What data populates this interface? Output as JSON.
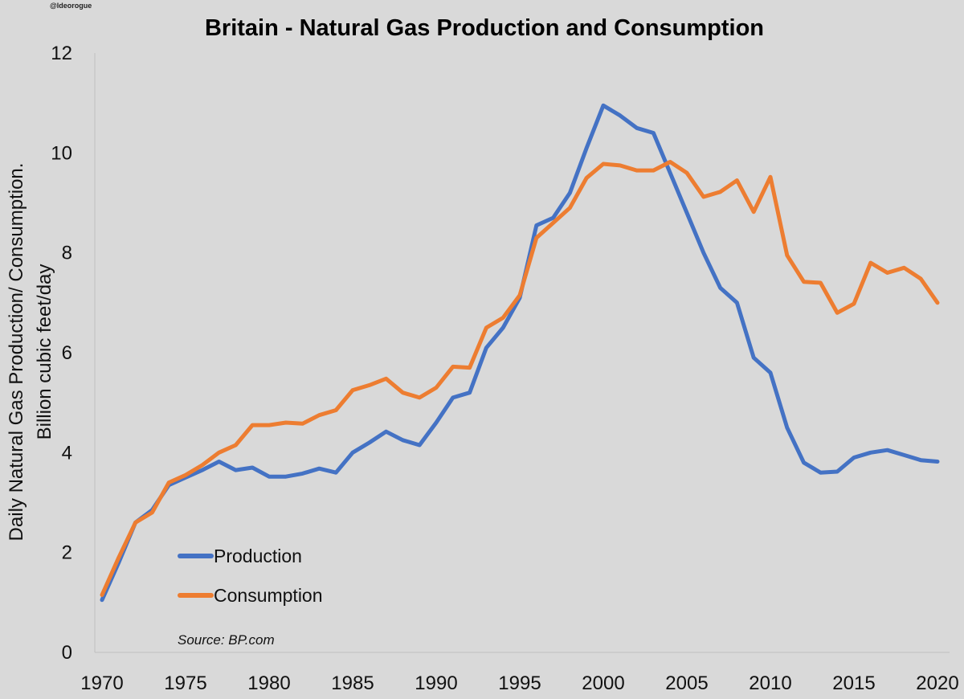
{
  "chart_data": {
    "type": "line",
    "title": "Britain - Natural Gas Production and Consumption",
    "handle": "@ldeorogue",
    "ylabel_line1": "Daily Natural Gas Production/ Consumption.",
    "ylabel_line2": "Billion cubic feet/day",
    "source": "Source: BP.com",
    "xlim": [
      1970,
      2020
    ],
    "ylim": [
      0,
      12
    ],
    "x_ticks": [
      1970,
      1975,
      1980,
      1985,
      1990,
      1995,
      2000,
      2005,
      2010,
      2015,
      2020
    ],
    "y_ticks": [
      0,
      2,
      4,
      6,
      8,
      10,
      12
    ],
    "grid": false,
    "legend_position": "bottom-left",
    "x": [
      1970,
      1971,
      1972,
      1973,
      1974,
      1975,
      1976,
      1977,
      1978,
      1979,
      1980,
      1981,
      1982,
      1983,
      1984,
      1985,
      1986,
      1987,
      1988,
      1989,
      1990,
      1991,
      1992,
      1993,
      1994,
      1995,
      1996,
      1997,
      1998,
      1999,
      2000,
      2001,
      2002,
      2003,
      2004,
      2005,
      2006,
      2007,
      2008,
      2009,
      2010,
      2011,
      2012,
      2013,
      2014,
      2015,
      2016,
      2017,
      2018,
      2019,
      2020
    ],
    "series": [
      {
        "name": "Production",
        "color": "#4472c4",
        "values": [
          1.05,
          1.8,
          2.6,
          2.85,
          3.35,
          3.5,
          3.65,
          3.82,
          3.65,
          3.7,
          3.52,
          3.52,
          3.58,
          3.68,
          3.6,
          4.0,
          4.2,
          4.42,
          4.25,
          4.15,
          4.6,
          5.1,
          5.2,
          6.1,
          6.5,
          7.1,
          8.55,
          8.7,
          9.2,
          10.1,
          10.95,
          10.75,
          10.5,
          10.4,
          9.6,
          8.8,
          8.0,
          7.3,
          7.0,
          5.9,
          5.6,
          4.5,
          3.8,
          3.6,
          3.62,
          3.9,
          4.0,
          4.05,
          3.95,
          3.85,
          3.82
        ]
      },
      {
        "name": "Consumption",
        "color": "#ed7d31",
        "values": [
          1.15,
          1.9,
          2.6,
          2.8,
          3.4,
          3.55,
          3.75,
          4.0,
          4.15,
          4.55,
          4.55,
          4.6,
          4.58,
          4.75,
          4.85,
          5.25,
          5.35,
          5.48,
          5.2,
          5.1,
          5.3,
          5.72,
          5.7,
          6.5,
          6.7,
          7.15,
          8.3,
          8.6,
          8.9,
          9.5,
          9.78,
          9.75,
          9.65,
          9.65,
          9.82,
          9.6,
          9.12,
          9.22,
          9.45,
          8.82,
          9.52,
          7.95,
          7.42,
          7.4,
          6.8,
          6.98,
          7.8,
          7.6,
          7.7,
          7.48,
          7.0
        ]
      }
    ]
  }
}
